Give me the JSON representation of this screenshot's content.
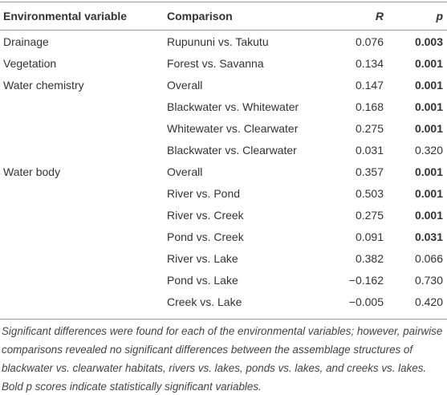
{
  "table": {
    "header": [
      "Environmental variable",
      "Comparison",
      "R",
      "p"
    ],
    "groups": [
      {
        "variable": "Drainage",
        "rows": [
          {
            "comparison": "Rupununi vs. Takutu",
            "R": "0.076",
            "p": "0.003",
            "p_bold": true
          }
        ]
      },
      {
        "variable": "Vegetation",
        "rows": [
          {
            "comparison": "Forest vs. Savanna",
            "R": "0.134",
            "p": "0.001",
            "p_bold": true
          }
        ]
      },
      {
        "variable": "Water chemistry",
        "rows": [
          {
            "comparison": "Overall",
            "R": "0.147",
            "p": "0.001",
            "p_bold": true
          },
          {
            "comparison": "Blackwater vs. Whitewater",
            "R": "0.168",
            "p": "0.001",
            "p_bold": true
          },
          {
            "comparison": "Whitewater vs. Clearwater",
            "R": "0.275",
            "p": "0.001",
            "p_bold": true
          },
          {
            "comparison": "Blackwater vs. Clearwater",
            "R": "0.031",
            "p": "0.320",
            "p_bold": false
          }
        ]
      },
      {
        "variable": "Water body",
        "rows": [
          {
            "comparison": "Overall",
            "R": "0.357",
            "p": "0.001",
            "p_bold": true
          },
          {
            "comparison": "River vs. Pond",
            "R": "0.503",
            "p": "0.001",
            "p_bold": true
          },
          {
            "comparison": "River vs. Creek",
            "R": "0.275",
            "p": "0.001",
            "p_bold": true
          },
          {
            "comparison": "Pond vs. Creek",
            "R": "0.091",
            "p": "0.031",
            "p_bold": true
          },
          {
            "comparison": "River vs. Lake",
            "R": "0.382",
            "p": "0.066",
            "p_bold": false
          },
          {
            "comparison": "Pond vs. Lake",
            "R": "−0.162",
            "p": "0.730",
            "p_bold": false
          },
          {
            "comparison": "Creek vs. Lake",
            "R": "−0.005",
            "p": "0.420",
            "p_bold": false
          }
        ]
      }
    ],
    "footnote": "Significant differences were found for each of the environmental variables; however, pairwise comparisons revealed no significant differences between the assemblage structures of blackwater vs. clearwater habitats, rivers vs. lakes, ponds vs. lakes, and creeks vs. lakes. Bold p scores indicate statistically significant variables."
  }
}
